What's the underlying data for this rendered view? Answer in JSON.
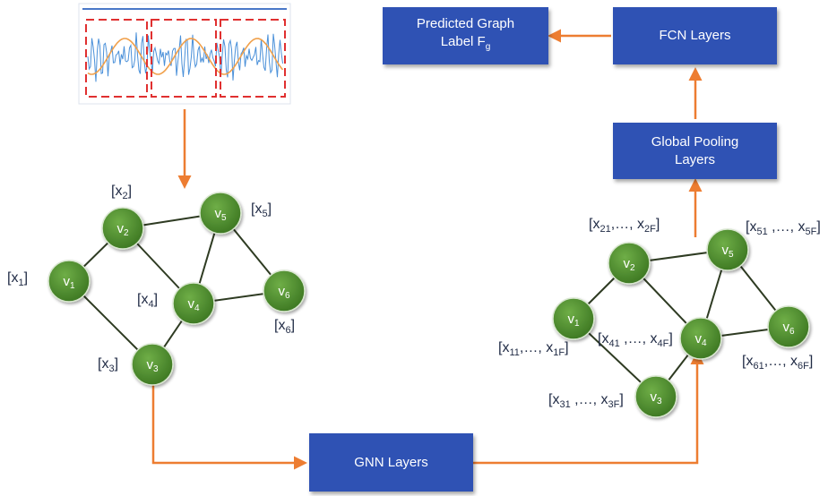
{
  "colors": {
    "box_fill": "#2f52b4",
    "arrow": "#ed7d31",
    "node_fill": "#4e8a2e",
    "signal_blue": "#4a90d9",
    "signal_orange": "#f0a04b",
    "window_red": "#e03030"
  },
  "boxes": {
    "predicted_line1": "Predicted Graph",
    "predicted_line2_base": "Label F",
    "predicted_line2_sub": "g",
    "fcn": "FCN Layers",
    "pooling_line1": "Global Pooling",
    "pooling_line2": "Layers",
    "gnn": "GNN Layers"
  },
  "graph_left": {
    "nodes": [
      {
        "id": "n1",
        "base": "v",
        "sub": "1"
      },
      {
        "id": "n2",
        "base": "v",
        "sub": "2"
      },
      {
        "id": "n3",
        "base": "v",
        "sub": "3"
      },
      {
        "id": "n4",
        "base": "v",
        "sub": "4"
      },
      {
        "id": "n5",
        "base": "v",
        "sub": "5"
      },
      {
        "id": "n6",
        "base": "v",
        "sub": "6"
      }
    ],
    "features": [
      {
        "base": "[x",
        "sub": "1",
        "end": "]"
      },
      {
        "base": "[x",
        "sub": "2",
        "end": "]"
      },
      {
        "base": "[x",
        "sub": "3",
        "end": "]"
      },
      {
        "base": "[x",
        "sub": "4",
        "end": "]"
      },
      {
        "base": "[x",
        "sub": "5",
        "end": "]"
      },
      {
        "base": "[x",
        "sub": "6",
        "end": "]"
      }
    ]
  },
  "graph_right": {
    "nodes": [
      {
        "id": "n1",
        "base": "v",
        "sub": "1"
      },
      {
        "id": "n2",
        "base": "v",
        "sub": "2"
      },
      {
        "id": "n3",
        "base": "v",
        "sub": "3"
      },
      {
        "id": "n4",
        "base": "v",
        "sub": "4"
      },
      {
        "id": "n5",
        "base": "v",
        "sub": "5"
      },
      {
        "id": "n6",
        "base": "v",
        "sub": "6"
      }
    ],
    "features": [
      {
        "a": "[x",
        "s1": "11",
        "m": ",…, x",
        "s2": "1F",
        "end": "]"
      },
      {
        "a": "[x",
        "s1": "21",
        "m": ",…, x",
        "s2": "2F",
        "end": "]"
      },
      {
        "a": "[x",
        "s1": "31",
        "m": " ,…, x",
        "s2": "3F",
        "end": "]"
      },
      {
        "a": "[x",
        "s1": "41",
        "m": " ,…, x",
        "s2": "4F",
        "end": "]"
      },
      {
        "a": "[x",
        "s1": "51",
        "m": " ,…, x",
        "s2": "5F",
        "end": "]"
      },
      {
        "a": "[x",
        "s1": "61",
        "m": ",…, x",
        "s2": "6F",
        "end": "]"
      }
    ]
  }
}
